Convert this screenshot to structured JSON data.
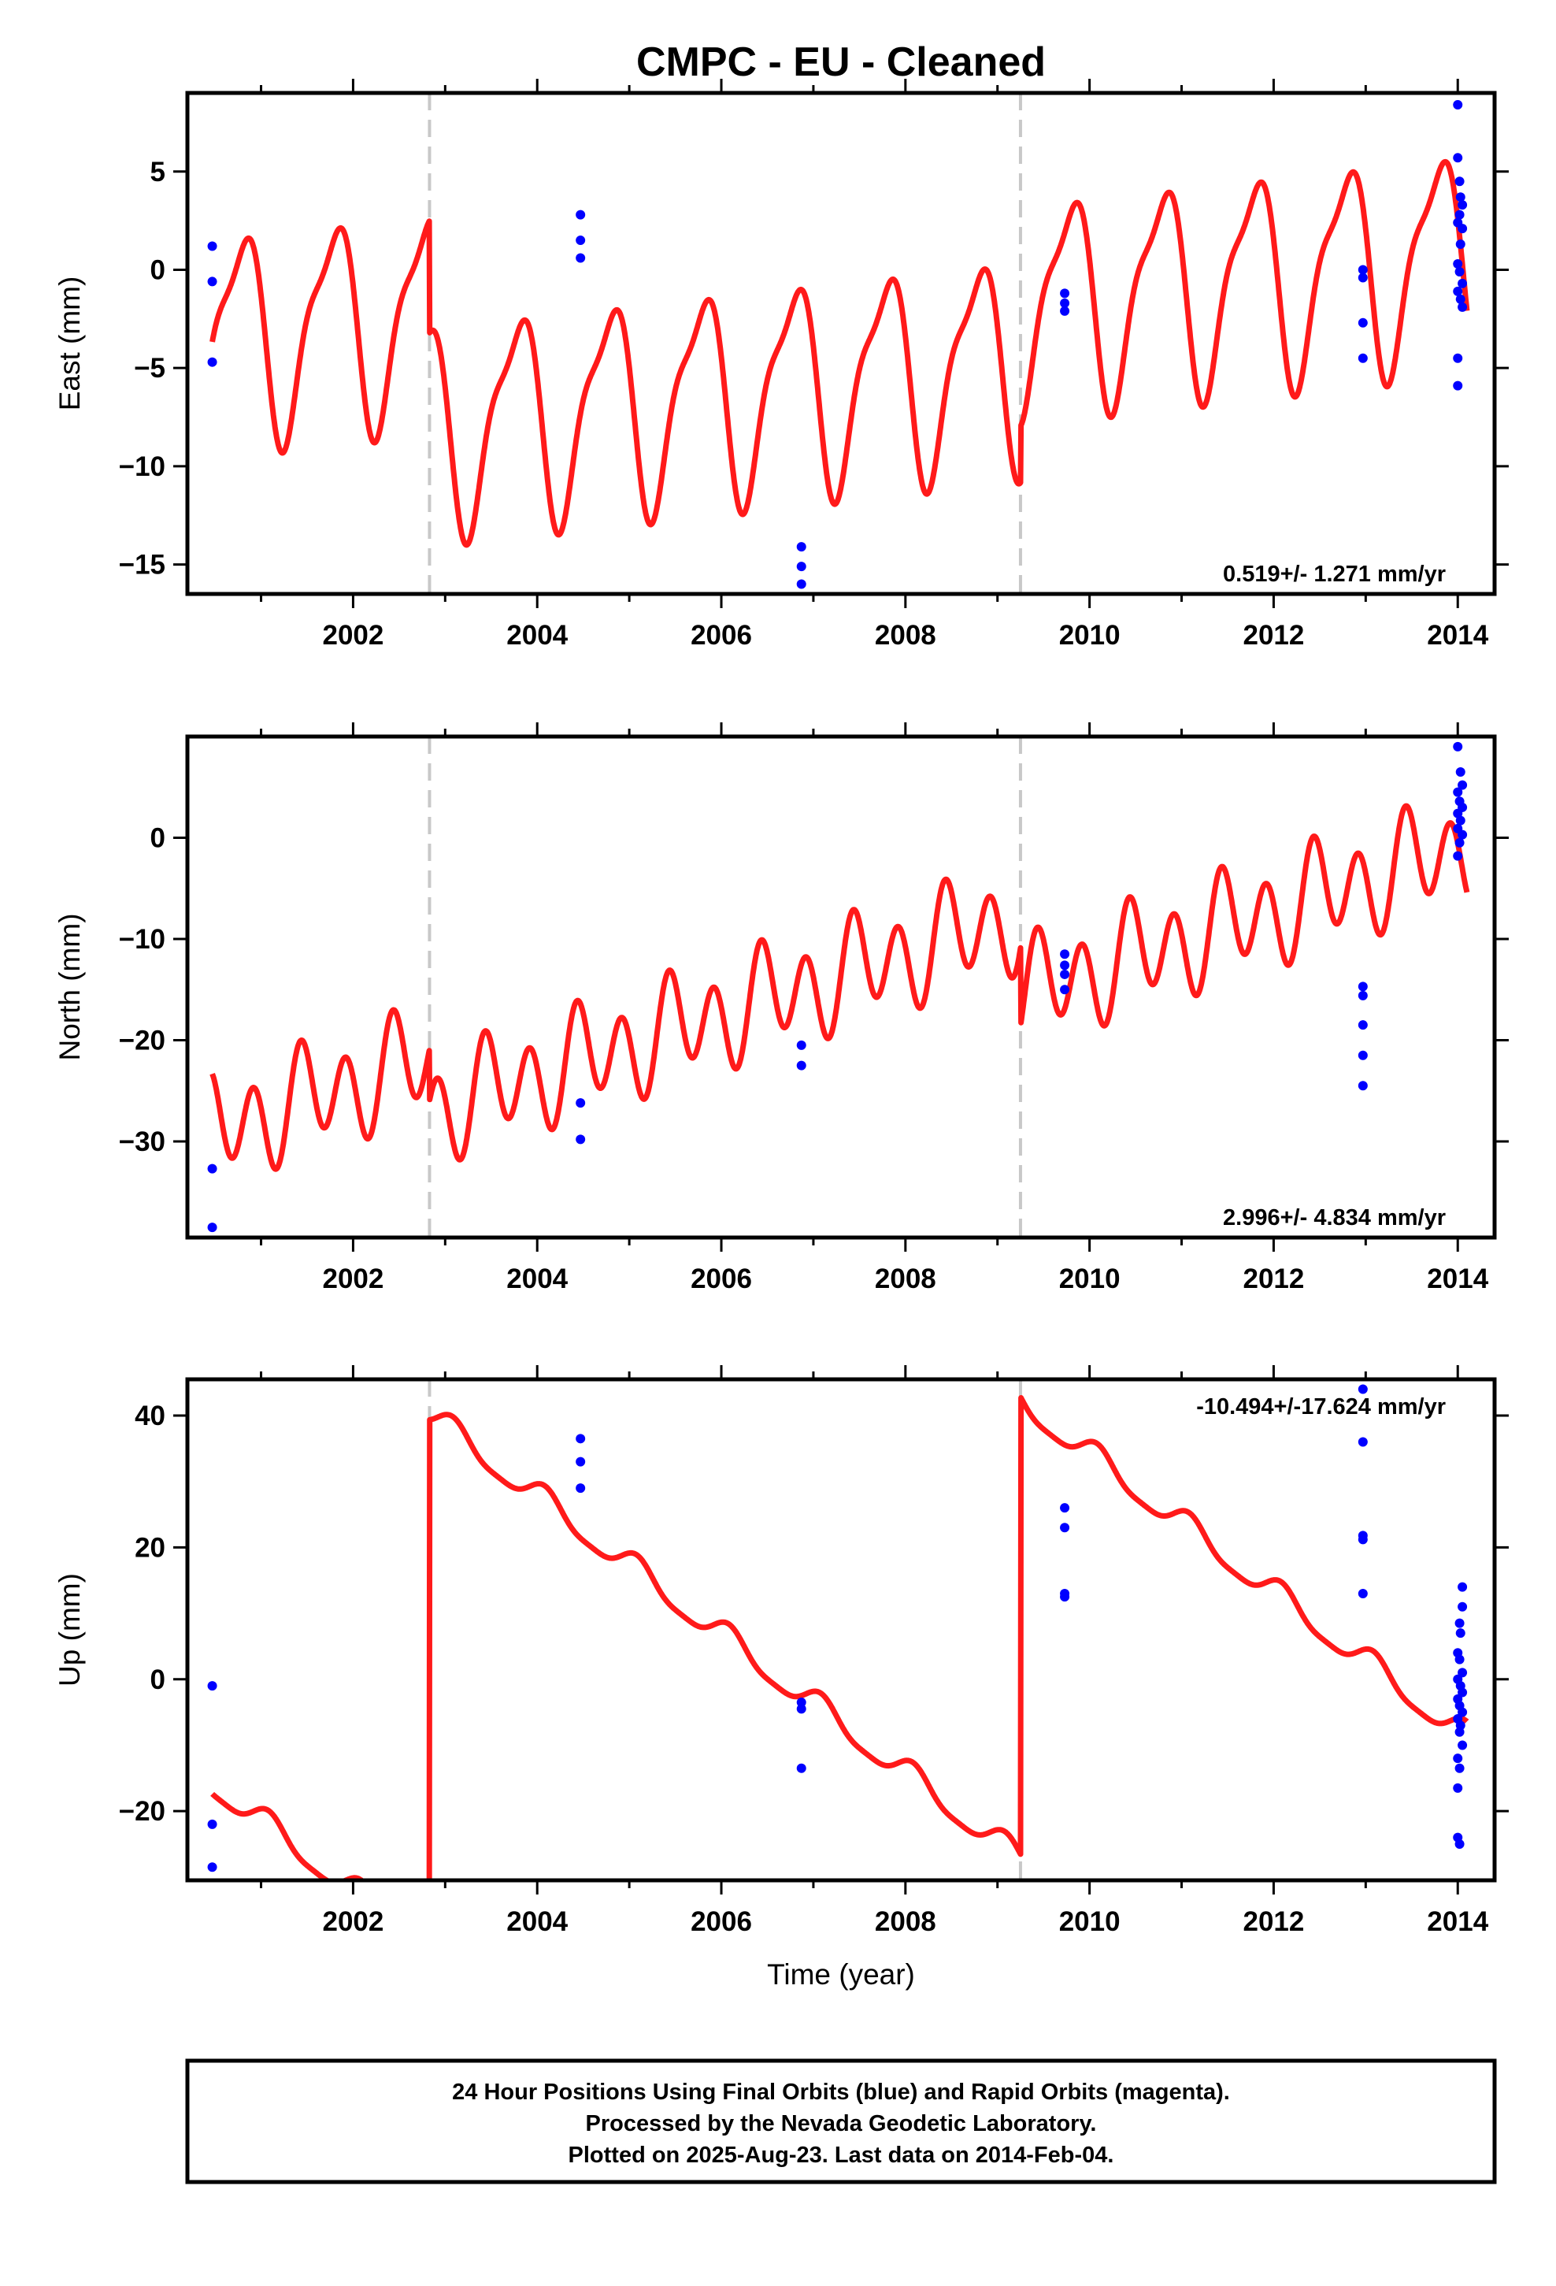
{
  "title": "CMPC  - EU - Cleaned",
  "footer": {
    "lines": [
      "24 Hour Positions Using Final Orbits (blue) and Rapid Orbits (magenta).",
      "Processed by the Nevada Geodetic Laboratory.",
      "Plotted on 2025-Aug-23. Last data on 2014-Feb-04."
    ]
  },
  "colors": {
    "model": "#ff1a1a",
    "points": "#0000ff",
    "breaks": "#c8c8c8",
    "axes": "#000000"
  },
  "chart_data": [
    {
      "type": "scatter",
      "ylabel": "East (mm)",
      "xlabel": "",
      "xlim": [
        2000.2,
        2014.4
      ],
      "ylim": [
        -16.5,
        9
      ],
      "xticks": [
        2002,
        2004,
        2006,
        2008,
        2010,
        2012,
        2014
      ],
      "yticks": [
        5,
        0,
        -5,
        -10,
        -15
      ],
      "ytick_labels": [
        "5",
        "0",
        "−5",
        "−10",
        "−15"
      ],
      "grid": false,
      "annotation": "0.519+/- 1.271 mm/yr",
      "annotation_position": "bottom-right",
      "equipment_breaks": [
        2002.83,
        2009.25
      ],
      "model": {
        "name": "",
        "offsets": [
          0,
          -5.5,
          5.5
        ],
        "segment_base": [
          -3.5,
          -8.0,
          -1.8
        ],
        "slope": 0.519,
        "annual_amp": 5.0,
        "annual_phase": 3.0,
        "semi_amp": 1.5,
        "semi_phase": 2.2,
        "start": 2000.47,
        "end": 2014.1
      },
      "points": [
        [
          2000.47,
          1.2
        ],
        [
          2000.47,
          -0.6
        ],
        [
          2000.47,
          -4.7
        ],
        [
          2004.47,
          2.8
        ],
        [
          2004.47,
          1.5
        ],
        [
          2004.47,
          0.6
        ],
        [
          2006.87,
          -14.1
        ],
        [
          2006.87,
          -15.1
        ],
        [
          2006.87,
          -16.0
        ],
        [
          2009.73,
          -1.2
        ],
        [
          2009.73,
          -1.7
        ],
        [
          2009.73,
          -2.1
        ],
        [
          2012.97,
          0.0
        ],
        [
          2012.97,
          -0.4
        ],
        [
          2012.97,
          -2.7
        ],
        [
          2012.97,
          -4.5
        ],
        [
          2014.0,
          8.4
        ],
        [
          2014.0,
          5.7
        ],
        [
          2014.02,
          4.5
        ],
        [
          2014.03,
          3.7
        ],
        [
          2014.05,
          3.3
        ],
        [
          2014.02,
          2.8
        ],
        [
          2014.0,
          2.4
        ],
        [
          2014.05,
          2.1
        ],
        [
          2014.03,
          1.3
        ],
        [
          2014.0,
          0.3
        ],
        [
          2014.02,
          -0.1
        ],
        [
          2014.05,
          -0.7
        ],
        [
          2014.0,
          -1.1
        ],
        [
          2014.03,
          -1.5
        ],
        [
          2014.05,
          -1.9
        ],
        [
          2014.0,
          -4.5
        ],
        [
          2014.0,
          -5.9
        ]
      ]
    },
    {
      "type": "scatter",
      "ylabel": "North (mm)",
      "xlabel": "",
      "xlim": [
        2000.2,
        2014.4
      ],
      "ylim": [
        -39.5,
        10
      ],
      "xticks": [
        2002,
        2004,
        2006,
        2008,
        2010,
        2012,
        2014
      ],
      "yticks": [
        0,
        -10,
        -20,
        -30
      ],
      "ytick_labels": [
        "0",
        "−10",
        "−20",
        "−30"
      ],
      "grid": false,
      "annotation": "2.996+/- 4.834 mm/yr",
      "annotation_position": "bottom-right",
      "equipment_breaks": [
        2002.83,
        2009.25
      ],
      "model": {
        "name": "",
        "offsets": [
          0,
          -4.0,
          -11.0
        ],
        "segment_base": [
          -29.0,
          -27.0,
          -15.5
        ],
        "slope": 2.996,
        "annual_amp": 2.0,
        "annual_phase": 4.5,
        "semi_amp": 4.5,
        "semi_phase": 2.5,
        "start": 2000.47,
        "end": 2014.1
      },
      "points": [
        [
          2000.47,
          -32.7
        ],
        [
          2000.47,
          -38.5
        ],
        [
          2004.47,
          -26.2
        ],
        [
          2004.47,
          -29.8
        ],
        [
          2006.87,
          -20.5
        ],
        [
          2006.87,
          -22.5
        ],
        [
          2009.73,
          -11.5
        ],
        [
          2009.73,
          -12.6
        ],
        [
          2009.73,
          -13.5
        ],
        [
          2009.73,
          -15.0
        ],
        [
          2012.97,
          -14.7
        ],
        [
          2012.97,
          -15.6
        ],
        [
          2012.97,
          -18.5
        ],
        [
          2012.97,
          -21.5
        ],
        [
          2012.97,
          -24.5
        ],
        [
          2014.0,
          9.0
        ],
        [
          2014.03,
          6.5
        ],
        [
          2014.05,
          5.2
        ],
        [
          2014.0,
          4.5
        ],
        [
          2014.02,
          3.6
        ],
        [
          2014.05,
          3.0
        ],
        [
          2014.0,
          2.4
        ],
        [
          2014.03,
          1.7
        ],
        [
          2014.0,
          0.9
        ],
        [
          2014.05,
          0.3
        ],
        [
          2014.02,
          -0.5
        ],
        [
          2014.0,
          -1.8
        ]
      ]
    },
    {
      "type": "scatter",
      "ylabel": "Up (mm)",
      "xlabel": "Time (year)",
      "xlim": [
        2000.2,
        2014.4
      ],
      "ylim": [
        -30.5,
        45.5
      ],
      "xticks": [
        2002,
        2004,
        2006,
        2008,
        2010,
        2012,
        2014
      ],
      "yticks": [
        40,
        20,
        0,
        -20
      ],
      "ytick_labels": [
        "40",
        "20",
        "0",
        "−20"
      ],
      "grid": false,
      "annotation": "-10.494+/-17.624 mm/yr",
      "annotation_position": "top-right",
      "equipment_breaks": [
        2002.83,
        2009.25
      ],
      "model": {
        "name": "",
        "offsets": [
          0,
          63.0,
          70.0
        ],
        "segment_base": [
          -16.0,
          40.0,
          42.0
        ],
        "slope": -10.494,
        "annual_amp": 2.0,
        "annual_phase": 1.0,
        "semi_amp": 0.5,
        "semi_phase": 0.5,
        "start": 2000.47,
        "end": 2014.1
      },
      "points": [
        [
          2000.47,
          -1.0
        ],
        [
          2000.47,
          -22.0
        ],
        [
          2000.47,
          -28.5
        ],
        [
          2004.47,
          36.5
        ],
        [
          2004.47,
          33.0
        ],
        [
          2004.47,
          29.0
        ],
        [
          2006.87,
          -3.5
        ],
        [
          2006.87,
          -4.5
        ],
        [
          2006.87,
          -13.5
        ],
        [
          2009.73,
          26.0
        ],
        [
          2009.73,
          23.0
        ],
        [
          2009.73,
          13.0
        ],
        [
          2009.73,
          12.5
        ],
        [
          2012.97,
          44.0
        ],
        [
          2012.97,
          36.0
        ],
        [
          2012.97,
          21.8
        ],
        [
          2012.97,
          21.2
        ],
        [
          2012.97,
          13.0
        ],
        [
          2014.05,
          14.0
        ],
        [
          2014.05,
          11.0
        ],
        [
          2014.02,
          8.5
        ],
        [
          2014.03,
          7.0
        ],
        [
          2014.0,
          4.0
        ],
        [
          2014.02,
          3.0
        ],
        [
          2014.05,
          1.0
        ],
        [
          2014.0,
          0.0
        ],
        [
          2014.03,
          -1.0
        ],
        [
          2014.05,
          -2.0
        ],
        [
          2014.0,
          -3.0
        ],
        [
          2014.02,
          -4.0
        ],
        [
          2014.05,
          -5.0
        ],
        [
          2014.0,
          -6.0
        ],
        [
          2014.03,
          -7.0
        ],
        [
          2014.02,
          -8.0
        ],
        [
          2014.05,
          -10.0
        ],
        [
          2014.0,
          -12.0
        ],
        [
          2014.02,
          -13.5
        ],
        [
          2014.0,
          -16.5
        ],
        [
          2014.0,
          -24.0
        ],
        [
          2014.02,
          -25.0
        ]
      ]
    }
  ]
}
